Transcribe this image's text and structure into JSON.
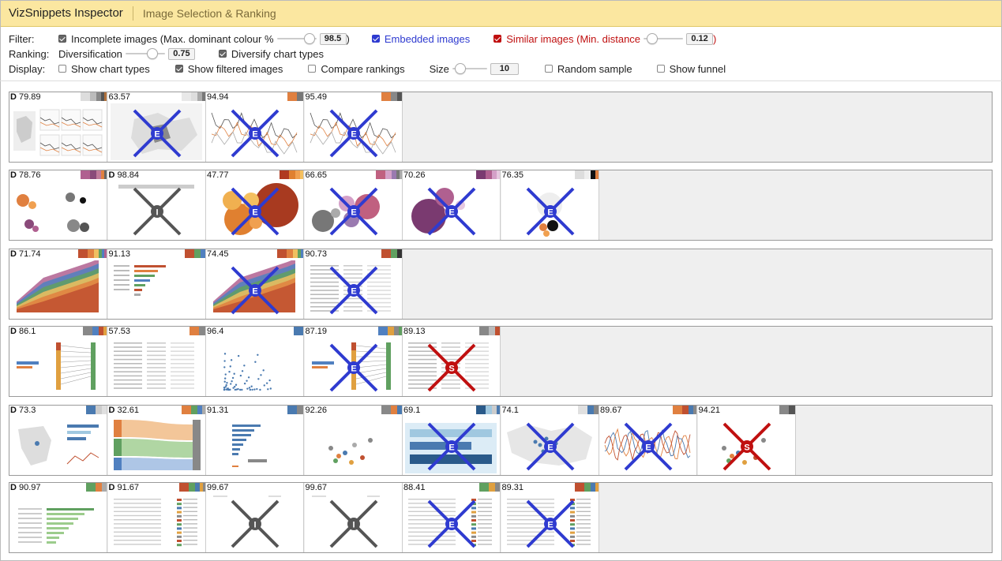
{
  "app": {
    "title": "VizSnippets Inspector",
    "subtitle": "Image Selection & Ranking"
  },
  "filter": {
    "label": "Filter:",
    "incomplete": {
      "label": "Incomplete images (Max. dominant colour %",
      "value": "98.5",
      "suffix": ")",
      "checked": true,
      "level": 0.95
    },
    "embedded": {
      "label": "Embedded images",
      "checked": true
    },
    "similar": {
      "label": "Similar images (Min. distance",
      "value": "0.12",
      "suffix": ")",
      "checked": true,
      "level": 0.12
    }
  },
  "ranking": {
    "label": "Ranking:",
    "diversification": {
      "label": "Diversification",
      "value": "0.75",
      "level": 0.75
    },
    "diversify_types": {
      "label": "Diversify chart types",
      "checked": true
    }
  },
  "display": {
    "label": "Display:",
    "show_chart_types": {
      "label": "Show chart types",
      "checked": false
    },
    "show_filtered": {
      "label": "Show filtered images",
      "checked": true
    },
    "compare_rankings": {
      "label": "Compare rankings",
      "checked": false
    },
    "size": {
      "label": "Size",
      "value": "10",
      "level": 0.1
    },
    "random_sample": {
      "label": "Random sample",
      "checked": false
    },
    "show_funnel": {
      "label": "Show funnel",
      "checked": false
    }
  },
  "groups": [
    {
      "cards": [
        {
          "d": "D",
          "score": "79.89",
          "mark": "",
          "kind": "map",
          "swatches": [
            "#dddddd",
            "#bbbbbb",
            "#888888",
            "#555555",
            "#b0703a"
          ]
        },
        {
          "d": "",
          "score": "63.57",
          "mark": "E",
          "kind": "map2",
          "swatches": [
            "#e8e8e8",
            "#dddddd",
            "#aaaaaa",
            "#777777"
          ]
        },
        {
          "d": "",
          "score": "94.94",
          "mark": "E",
          "kind": "line",
          "swatches": [
            "#e08040",
            "#777777"
          ]
        },
        {
          "d": "",
          "score": "95.49",
          "mark": "E",
          "kind": "line",
          "swatches": [
            "#e08040",
            "#888888",
            "#555555"
          ]
        }
      ]
    },
    {
      "cards": [
        {
          "d": "D",
          "score": "78.76",
          "mark": "",
          "kind": "bubbles",
          "swatches": [
            "#b06090",
            "#8a4a7a",
            "#c07a9a",
            "#e08040",
            "#666666"
          ]
        },
        {
          "d": "D",
          "score": "98.84",
          "mark": "I",
          "kind": "text",
          "swatches": []
        },
        {
          "d": "",
          "score": "47.77",
          "mark": "E",
          "kind": "bubbles2",
          "swatches": [
            "#b03a20",
            "#e08030",
            "#f0a050",
            "#f4c060"
          ]
        },
        {
          "d": "",
          "score": "66.65",
          "mark": "E",
          "kind": "bubbles3",
          "swatches": [
            "#c06080",
            "#d4a0c8",
            "#9a7ab0",
            "#777777",
            "#aaaaaa"
          ]
        },
        {
          "d": "",
          "score": "70.26",
          "mark": "E",
          "kind": "bubbles4",
          "swatches": [
            "#7a3a70",
            "#b06090",
            "#d4a0c8",
            "#e6c8e0"
          ]
        },
        {
          "d": "",
          "score": "76.35",
          "mark": "E",
          "kind": "bubbles5",
          "swatches": [
            "#dddddd",
            "#eeeeee",
            "#111111",
            "#e08040"
          ]
        }
      ]
    },
    {
      "cards": [
        {
          "d": "D",
          "score": "71.74",
          "mark": "",
          "kind": "area",
          "swatches": [
            "#c05030",
            "#e08040",
            "#f0c060",
            "#60a060",
            "#5080c0",
            "#b06090"
          ]
        },
        {
          "d": "",
          "score": "91.13",
          "mark": "",
          "kind": "hbar",
          "swatches": [
            "#c05030",
            "#60a060",
            "#5080c0"
          ]
        },
        {
          "d": "",
          "score": "74.45",
          "mark": "E",
          "kind": "area",
          "swatches": [
            "#c05030",
            "#e08040",
            "#f0c060",
            "#60a060",
            "#5080c0"
          ]
        },
        {
          "d": "",
          "score": "90.73",
          "mark": "E",
          "kind": "table",
          "swatches": [
            "#c05030",
            "#60a060",
            "#333333"
          ]
        }
      ]
    },
    {
      "cards": [
        {
          "d": "D",
          "score": "86.1",
          "mark": "",
          "kind": "slope",
          "swatches": [
            "#888888",
            "#5080c0",
            "#c05030",
            "#e0a040"
          ]
        },
        {
          "d": "",
          "score": "57.53",
          "mark": "",
          "kind": "table",
          "swatches": [
            "#e08040",
            "#888888"
          ]
        },
        {
          "d": "",
          "score": "96.4",
          "mark": "",
          "kind": "scatter",
          "swatches": [
            "#4a7ab0"
          ]
        },
        {
          "d": "",
          "score": "87.19",
          "mark": "E",
          "kind": "slope",
          "swatches": [
            "#5080c0",
            "#e0a040",
            "#888888",
            "#60a060"
          ]
        },
        {
          "d": "",
          "score": "89.13",
          "mark": "S",
          "kind": "table",
          "swatches": [
            "#888888",
            "#bbbbbb",
            "#c05030"
          ]
        }
      ]
    },
    {
      "cards": [
        {
          "d": "D",
          "score": "73.3",
          "mark": "",
          "kind": "map3",
          "swatches": [
            "#4a7ab0",
            "#cccccc",
            "#e0e0e0"
          ]
        },
        {
          "d": "D",
          "score": "32.61",
          "mark": "",
          "kind": "sankey",
          "swatches": [
            "#e08040",
            "#60a060",
            "#5080c0",
            "#aaaaaa"
          ]
        },
        {
          "d": "",
          "score": "91.31",
          "mark": "",
          "kind": "hbar2",
          "swatches": [
            "#4a7ab0",
            "#888888"
          ]
        },
        {
          "d": "",
          "score": "92.26",
          "mark": "",
          "kind": "dots",
          "swatches": [
            "#888888",
            "#e08040",
            "#4a7ab0"
          ]
        },
        {
          "d": "",
          "score": "69.1",
          "mark": "E",
          "kind": "hbar3",
          "swatches": [
            "#2a5a8a",
            "#a0c8e0",
            "#cccccc",
            "#4a7ab0"
          ]
        },
        {
          "d": "",
          "score": "74.1",
          "mark": "E",
          "kind": "map4",
          "swatches": [
            "#e0e0e0",
            "#4a7ab0",
            "#888888"
          ]
        },
        {
          "d": "",
          "score": "89.67",
          "mark": "E",
          "kind": "wave",
          "swatches": [
            "#e08040",
            "#c05030",
            "#4a7ab0",
            "#888888"
          ]
        },
        {
          "d": "",
          "score": "94.21",
          "mark": "S",
          "kind": "dots",
          "swatches": [
            "#888888",
            "#555555"
          ]
        }
      ]
    },
    {
      "cards": [
        {
          "d": "D",
          "score": "90.97",
          "mark": "",
          "kind": "hbar4",
          "swatches": [
            "#60a060",
            "#e08040",
            "#aaaaaa"
          ]
        },
        {
          "d": "D",
          "score": "91.67",
          "mark": "",
          "kind": "table2",
          "swatches": [
            "#c05030",
            "#60a060",
            "#4a7ab0",
            "#e0a040",
            "#888888"
          ]
        },
        {
          "d": "",
          "score": "99.67",
          "mark": "I",
          "kind": "blank",
          "swatches": []
        },
        {
          "d": "",
          "score": "99.67",
          "mark": "I",
          "kind": "blank",
          "swatches": []
        },
        {
          "d": "",
          "score": "88.41",
          "mark": "E",
          "kind": "table2",
          "swatches": [
            "#60a060",
            "#e0a040",
            "#888888"
          ]
        },
        {
          "d": "",
          "score": "89.31",
          "mark": "E",
          "kind": "table2",
          "swatches": [
            "#c05030",
            "#60a060",
            "#4a7ab0",
            "#e0a040"
          ]
        }
      ]
    }
  ],
  "colors": {
    "embedded": "#2f3bd0",
    "similar": "#c01010",
    "incomplete": "#555555"
  }
}
